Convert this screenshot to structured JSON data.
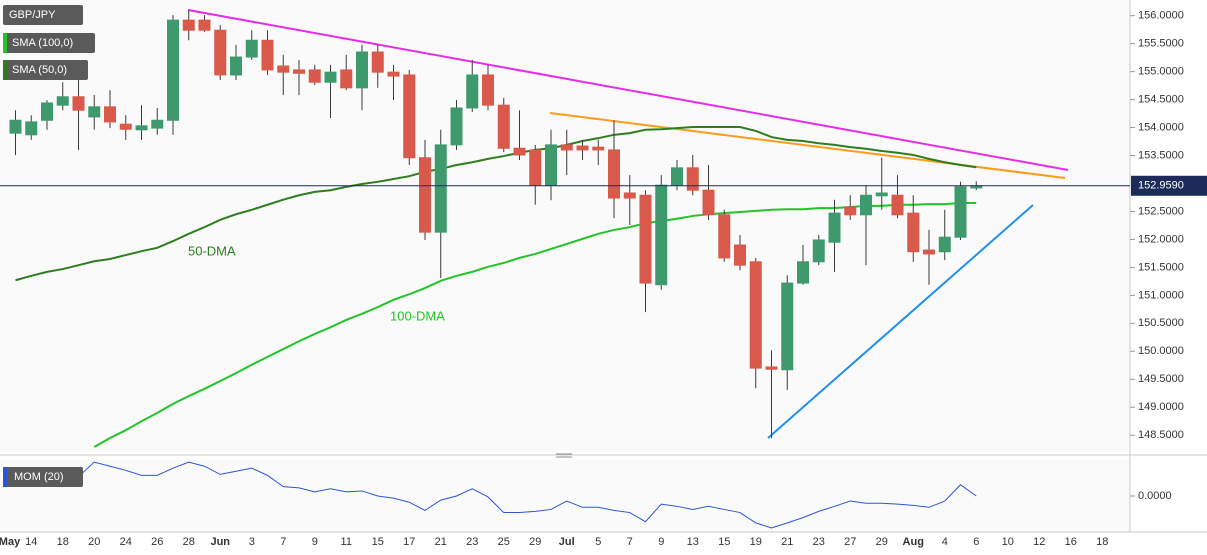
{
  "chart_data": [
    {
      "type": "candlestick",
      "symbol": "GBP/JPY",
      "categories": [
        "May",
        "14",
        null,
        "18",
        null,
        "20",
        null,
        "24",
        null,
        "26",
        null,
        "28",
        null,
        "Jun",
        null,
        "3",
        null,
        "7",
        null,
        "9",
        null,
        "11",
        null,
        "15",
        null,
        "17",
        null,
        "21",
        null,
        "23",
        null,
        "25",
        null,
        "29",
        null,
        "Jul",
        null,
        "5",
        null,
        "7",
        null,
        "9",
        null,
        "13",
        null,
        "15",
        null,
        "19",
        null,
        "21",
        null,
        "23",
        null,
        "27",
        null,
        "29",
        null,
        "Aug",
        null,
        "4",
        null,
        "6",
        null,
        "10",
        null,
        "12",
        null,
        "16",
        null,
        "18"
      ],
      "open": [
        153.9,
        153.87,
        154.13,
        154.4,
        154.55,
        154.19,
        154.37,
        154.06,
        153.96,
        153.99,
        154.13,
        155.92,
        155.92,
        155.74,
        154.94,
        155.26,
        155.56,
        155.1,
        155.03,
        155.03,
        154.81,
        155.03,
        154.71,
        155.35,
        154.99,
        154.94,
        153.46,
        152.13,
        153.69,
        154.35,
        154.94,
        154.4,
        153.63,
        153.6,
        152.97,
        153.69,
        153.67,
        153.65,
        153.6,
        152.83,
        152.79,
        151.19,
        152.97,
        153.28,
        152.88,
        152.44,
        151.9,
        151.6,
        149.72,
        149.67,
        151.22,
        151.6,
        151.95,
        152.58,
        152.44,
        152.78,
        152.79,
        152.47,
        151.81,
        151.78,
        152.04,
        152.92,
        null,
        null,
        null,
        null,
        null,
        null,
        null,
        null
      ],
      "high": [
        154.31,
        154.22,
        154.49,
        154.81,
        154.85,
        154.58,
        154.67,
        154.22,
        154.4,
        154.35,
        156.01,
        156.1,
        156.01,
        155.83,
        155.48,
        155.74,
        155.74,
        155.3,
        155.21,
        155.12,
        155.12,
        155.3,
        155.48,
        155.48,
        155.12,
        155.03,
        153.78,
        153.96,
        154.49,
        155.21,
        155.12,
        154.53,
        154.31,
        153.69,
        153.96,
        153.96,
        153.78,
        153.78,
        154.13,
        153.15,
        152.88,
        153.15,
        153.42,
        153.51,
        153.33,
        152.53,
        152.08,
        151.67,
        150.02,
        151.36,
        151.9,
        152.08,
        152.71,
        152.79,
        152.97,
        153.46,
        153.15,
        152.79,
        152.17,
        152.53,
        153.03,
        153.04,
        null,
        null,
        null,
        null,
        null,
        null,
        null,
        null
      ],
      "low": [
        153.51,
        153.78,
        153.96,
        154.31,
        153.6,
        153.96,
        153.99,
        153.78,
        153.78,
        153.87,
        153.87,
        155.56,
        155.71,
        154.85,
        154.85,
        155.21,
        154.94,
        154.58,
        154.58,
        154.76,
        154.17,
        154.67,
        154.31,
        154.71,
        154.49,
        153.33,
        151.99,
        151.31,
        153.6,
        154.28,
        154.31,
        153.56,
        153.42,
        152.62,
        152.7,
        153.15,
        153.42,
        153.33,
        152.38,
        152.26,
        150.7,
        151.1,
        152.88,
        152.79,
        152.35,
        151.6,
        151.45,
        149.34,
        148.45,
        149.31,
        151.19,
        151.54,
        151.42,
        152.35,
        151.54,
        152.53,
        152.38,
        151.6,
        151.19,
        151.63,
        151.99,
        152.88,
        null,
        null,
        null,
        null,
        null,
        null,
        null,
        null
      ],
      "close": [
        154.13,
        154.1,
        154.44,
        154.55,
        154.31,
        154.37,
        154.1,
        153.97,
        154.03,
        154.13,
        155.92,
        155.74,
        155.74,
        154.94,
        155.26,
        155.56,
        155.03,
        154.99,
        154.97,
        154.81,
        154.99,
        154.71,
        155.35,
        154.99,
        154.92,
        153.46,
        152.13,
        153.69,
        154.35,
        154.94,
        154.4,
        153.63,
        153.51,
        152.97,
        153.69,
        153.6,
        153.6,
        153.6,
        152.74,
        152.74,
        151.22,
        152.97,
        153.28,
        152.88,
        152.44,
        151.67,
        151.54,
        149.7,
        149.68,
        151.22,
        151.6,
        151.99,
        152.47,
        152.44,
        152.79,
        152.83,
        152.44,
        151.78,
        151.74,
        152.04,
        152.94,
        152.959,
        null,
        null,
        null,
        null,
        null,
        null,
        null,
        null
      ],
      "up_color": "#3e9a6c",
      "down_color": "#d9594b",
      "series": [
        {
          "name": "SMA (100,0)",
          "color": "#22c428",
          "values": [
            null,
            null,
            null,
            null,
            null,
            148.29,
            148.45,
            148.59,
            148.75,
            148.9,
            149.06,
            149.2,
            149.33,
            149.47,
            149.61,
            149.76,
            149.9,
            150.04,
            150.18,
            150.31,
            150.43,
            150.56,
            150.67,
            150.79,
            150.92,
            151.02,
            151.13,
            151.26,
            151.35,
            151.42,
            151.51,
            151.58,
            151.67,
            151.74,
            151.83,
            151.92,
            152.01,
            152.1,
            152.17,
            152.22,
            152.29,
            152.33,
            152.37,
            152.42,
            152.45,
            152.47,
            152.49,
            152.51,
            152.53,
            152.54,
            152.54,
            152.56,
            152.56,
            152.58,
            152.6,
            152.6,
            152.62,
            152.62,
            152.63,
            152.63,
            152.65,
            152.65,
            null,
            null,
            null,
            null,
            null,
            null,
            null,
            null
          ]
        },
        {
          "name": "SMA (50,0)",
          "color": "#2e7d1e",
          "values": [
            151.27,
            151.35,
            151.42,
            151.47,
            151.54,
            151.61,
            151.65,
            151.72,
            151.79,
            151.85,
            151.97,
            152.1,
            152.22,
            152.35,
            152.45,
            152.53,
            152.62,
            152.71,
            152.79,
            152.85,
            152.88,
            152.94,
            152.99,
            153.03,
            153.08,
            153.13,
            153.21,
            153.26,
            153.33,
            153.38,
            153.44,
            153.49,
            153.55,
            153.6,
            153.63,
            153.69,
            153.76,
            153.81,
            153.87,
            153.9,
            153.96,
            153.97,
            153.99,
            154.01,
            154.01,
            154.01,
            154.01,
            153.94,
            153.83,
            153.78,
            153.76,
            153.72,
            153.69,
            153.65,
            153.62,
            153.58,
            153.55,
            153.51,
            153.44,
            153.38,
            153.33,
            153.29,
            null,
            null,
            null,
            null,
            null,
            null,
            null,
            null
          ]
        }
      ],
      "annotations": [
        "50-DMA",
        "100-DMA"
      ],
      "last_price": {
        "value": 152.959,
        "label": "152.9590"
      },
      "ylim": [
        148.2,
        156.28
      ],
      "yticks": [
        {
          "value": 148.5,
          "label": "148.5000"
        },
        {
          "value": 149,
          "label": "149.0000"
        },
        {
          "value": 149.5,
          "label": "149.5000"
        },
        {
          "value": 150,
          "label": "150.0000"
        },
        {
          "value": 150.5,
          "label": "150.5000"
        },
        {
          "value": 151,
          "label": "151.0000"
        },
        {
          "value": 151.5,
          "label": "151.5000"
        },
        {
          "value": 152,
          "label": "152.0000"
        },
        {
          "value": 152.5,
          "label": "152.5000"
        },
        {
          "value": 153.5,
          "label": "153.5000"
        },
        {
          "value": 154,
          "label": "154.0000"
        },
        {
          "value": 154.5,
          "label": "154.5000"
        },
        {
          "value": 155,
          "label": "155.0000"
        },
        {
          "value": 155.5,
          "label": "155.5000"
        },
        {
          "value": 156,
          "label": "156.0000"
        }
      ]
    },
    {
      "type": "line",
      "title": "MOM (20)",
      "color": "#2a55d6",
      "values": [
        1.16,
        0.99,
        0.81,
        0.73,
        0.81,
        1.41,
        1.24,
        1.07,
        0.86,
        0.86,
        1.16,
        1.41,
        1.24,
        0.9,
        1.03,
        1.16,
        0.86,
        0.39,
        0.34,
        0.17,
        0.3,
        0.17,
        0.21,
        0,
        -0.09,
        -0.26,
        -0.6,
        -0.17,
        0,
        0.3,
        -0.04,
        -0.69,
        -0.69,
        -0.64,
        -0.56,
        -0.21,
        -0.47,
        -0.47,
        -0.6,
        -0.69,
        -1.07,
        -0.34,
        -0.43,
        -0.56,
        -0.43,
        -0.56,
        -0.69,
        -1.12,
        -1.33,
        -1.12,
        -0.9,
        -0.64,
        -0.43,
        -0.21,
        -0.3,
        -0.3,
        -0.34,
        -0.39,
        -0.47,
        -0.21,
        0.47,
        0,
        null,
        null,
        null,
        null,
        null,
        null,
        null,
        null
      ],
      "ylim": [
        -1.5,
        1.5
      ],
      "yticks": [
        {
          "value": 0,
          "label": "0.0000"
        }
      ]
    }
  ]
}
